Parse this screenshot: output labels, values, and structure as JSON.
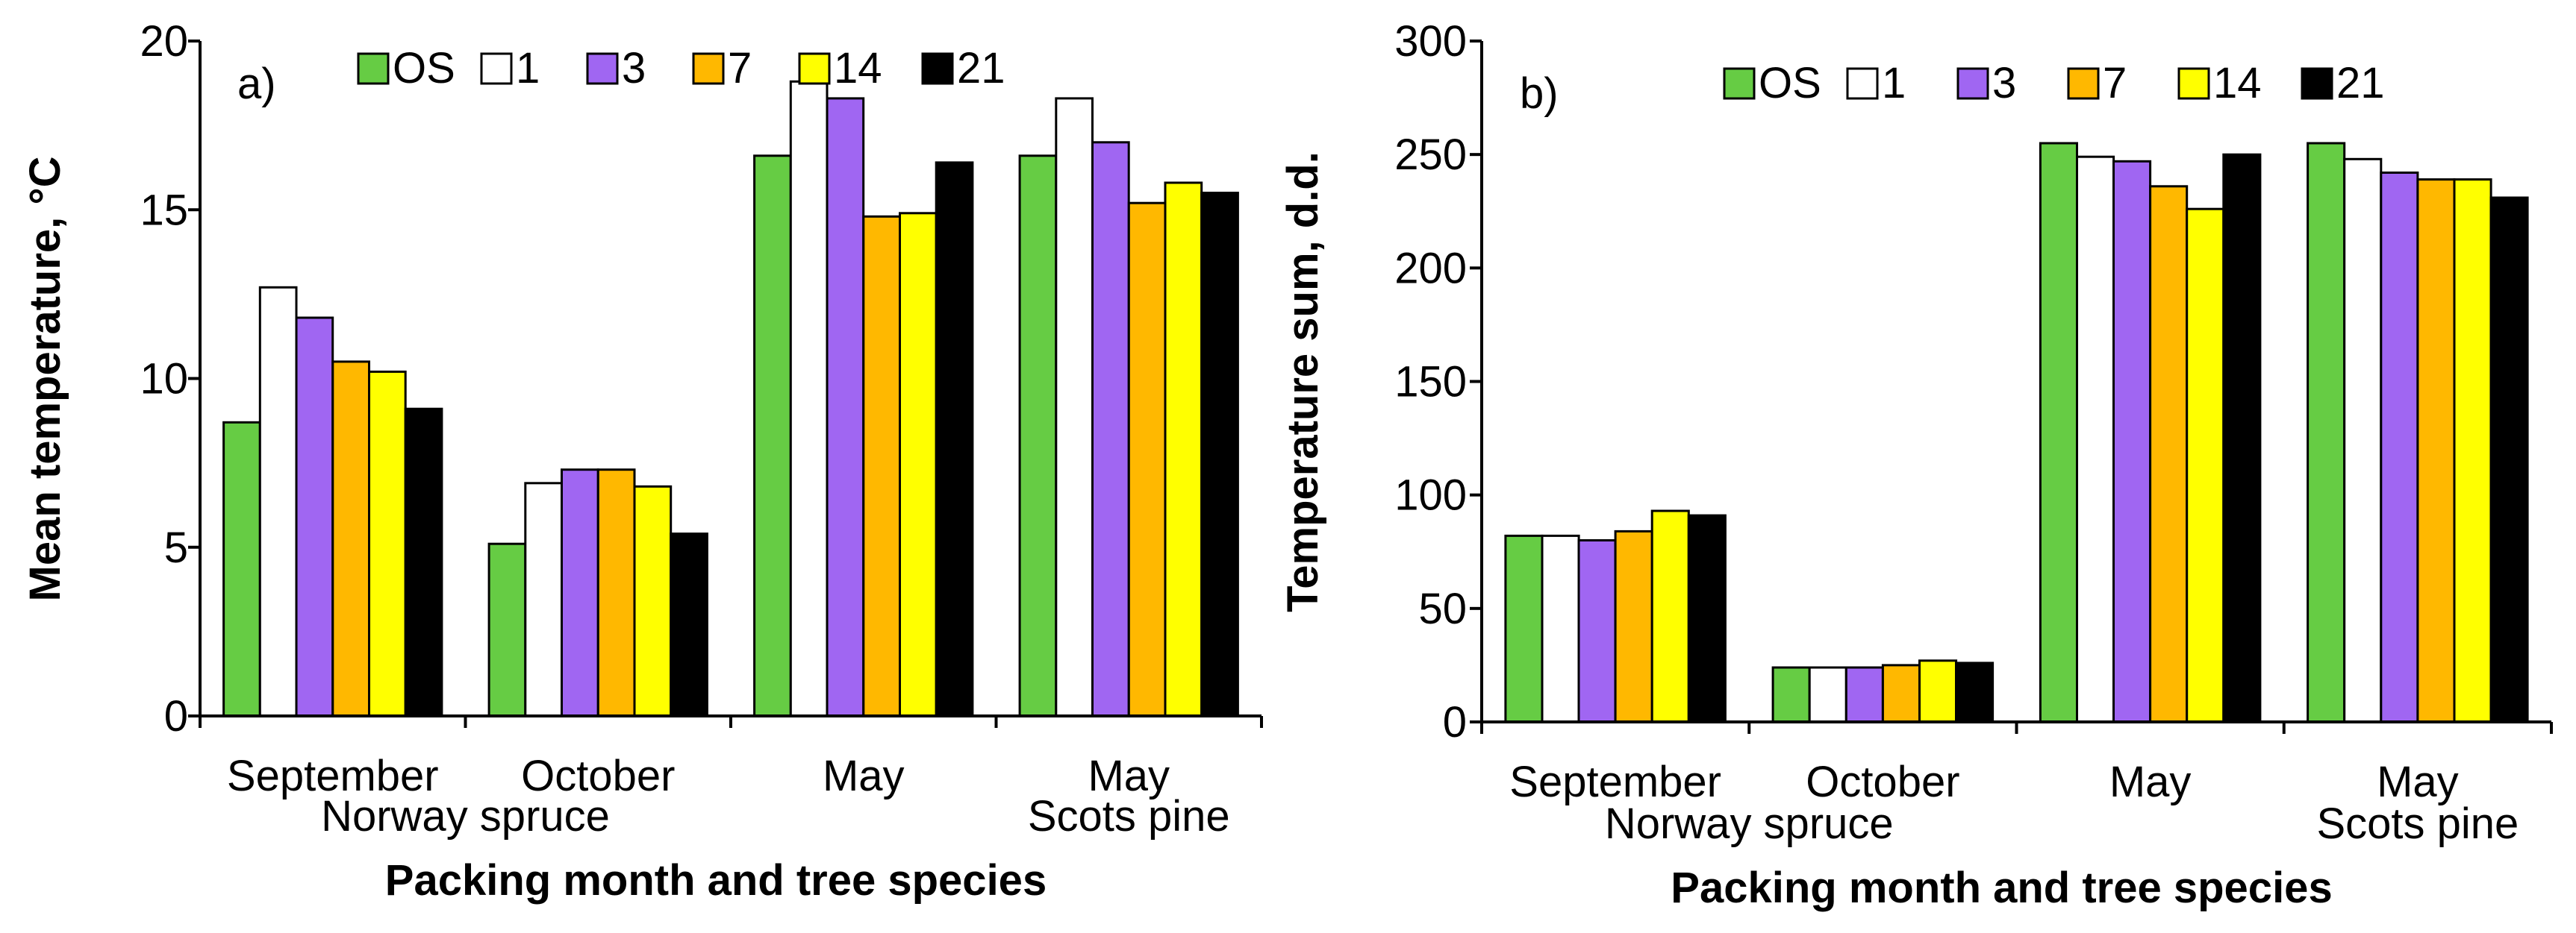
{
  "chart_data": [
    {
      "type": "bar",
      "panel_label": "a)",
      "categories": [
        "September",
        "October",
        "May",
        "May"
      ],
      "category_sublabels": [
        {
          "text": "Norway spruce",
          "span": [
            0,
            1
          ]
        },
        {
          "text": "Scots pine",
          "span": [
            3,
            3
          ]
        }
      ],
      "series": [
        {
          "name": "OS",
          "values": [
            8.7,
            5.1,
            16.6,
            16.6
          ]
        },
        {
          "name": "1",
          "values": [
            12.7,
            6.9,
            18.8,
            18.3
          ]
        },
        {
          "name": "3",
          "values": [
            11.8,
            7.3,
            18.3,
            17.0
          ]
        },
        {
          "name": "7",
          "values": [
            10.5,
            7.3,
            14.8,
            15.2
          ]
        },
        {
          "name": "14",
          "values": [
            10.2,
            6.8,
            14.9,
            15.8
          ]
        },
        {
          "name": "21",
          "values": [
            9.1,
            5.4,
            16.4,
            15.5
          ]
        }
      ],
      "xlabel": "Packing month and tree species",
      "ylabel": "Mean temperature, °C",
      "ylim": [
        0,
        20
      ],
      "yticks": [
        "0",
        "5",
        "10",
        "15",
        "20"
      ],
      "grid": false,
      "legend": "top"
    },
    {
      "type": "bar",
      "panel_label": "b)",
      "categories": [
        "September",
        "October",
        "May",
        "May"
      ],
      "category_sublabels": [
        {
          "text": "Norway spruce",
          "span": [
            0,
            1
          ]
        },
        {
          "text": "Scots pine",
          "span": [
            3,
            3
          ]
        }
      ],
      "series": [
        {
          "name": "OS",
          "values": [
            82,
            24,
            255,
            255
          ]
        },
        {
          "name": "1",
          "values": [
            82,
            24,
            249,
            248
          ]
        },
        {
          "name": "3",
          "values": [
            80,
            24,
            247,
            242
          ]
        },
        {
          "name": "7",
          "values": [
            84,
            25,
            236,
            239
          ]
        },
        {
          "name": "14",
          "values": [
            93,
            27,
            226,
            239
          ]
        },
        {
          "name": "21",
          "values": [
            91,
            26,
            250,
            231
          ]
        }
      ],
      "xlabel": "Packing month and tree species",
      "ylabel": "Temperature sum, d.d.",
      "ylim": [
        0,
        300
      ],
      "yticks": [
        "0",
        "50",
        "100",
        "150",
        "200",
        "250",
        "300"
      ],
      "grid": false,
      "legend": "top"
    }
  ],
  "colors": {
    "OS": "#66cc44",
    "1": "#ffffff",
    "3": "#a066f2",
    "7": "#ffb800",
    "14": "#ffff00",
    "21": "#000000"
  }
}
